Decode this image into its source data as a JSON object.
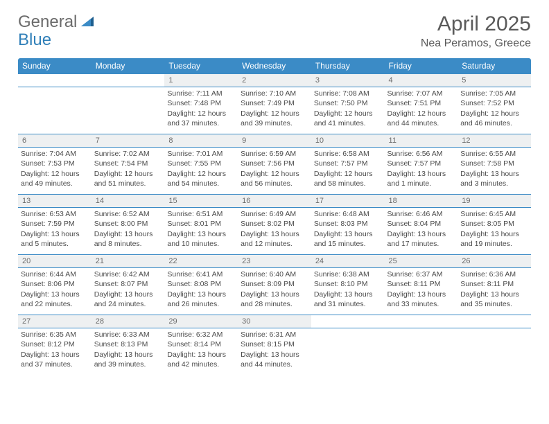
{
  "logo": {
    "word1": "General",
    "word2": "Blue"
  },
  "title": "April 2025",
  "location": "Nea Peramos, Greece",
  "colors": {
    "header_bg": "#3b8bc6",
    "daynum_bg": "#eef0f1",
    "rule": "#3b8bc6",
    "text": "#4a4a4a",
    "title_text": "#5a5a5a",
    "logo_gray": "#6b6b6b",
    "logo_blue": "#2f7fb8"
  },
  "day_headers": [
    "Sunday",
    "Monday",
    "Tuesday",
    "Wednesday",
    "Thursday",
    "Friday",
    "Saturday"
  ],
  "weeks": [
    [
      null,
      null,
      {
        "d": "1",
        "sr": "Sunrise: 7:11 AM",
        "ss": "Sunset: 7:48 PM",
        "dl1": "Daylight: 12 hours",
        "dl2": "and 37 minutes."
      },
      {
        "d": "2",
        "sr": "Sunrise: 7:10 AM",
        "ss": "Sunset: 7:49 PM",
        "dl1": "Daylight: 12 hours",
        "dl2": "and 39 minutes."
      },
      {
        "d": "3",
        "sr": "Sunrise: 7:08 AM",
        "ss": "Sunset: 7:50 PM",
        "dl1": "Daylight: 12 hours",
        "dl2": "and 41 minutes."
      },
      {
        "d": "4",
        "sr": "Sunrise: 7:07 AM",
        "ss": "Sunset: 7:51 PM",
        "dl1": "Daylight: 12 hours",
        "dl2": "and 44 minutes."
      },
      {
        "d": "5",
        "sr": "Sunrise: 7:05 AM",
        "ss": "Sunset: 7:52 PM",
        "dl1": "Daylight: 12 hours",
        "dl2": "and 46 minutes."
      }
    ],
    [
      {
        "d": "6",
        "sr": "Sunrise: 7:04 AM",
        "ss": "Sunset: 7:53 PM",
        "dl1": "Daylight: 12 hours",
        "dl2": "and 49 minutes."
      },
      {
        "d": "7",
        "sr": "Sunrise: 7:02 AM",
        "ss": "Sunset: 7:54 PM",
        "dl1": "Daylight: 12 hours",
        "dl2": "and 51 minutes."
      },
      {
        "d": "8",
        "sr": "Sunrise: 7:01 AM",
        "ss": "Sunset: 7:55 PM",
        "dl1": "Daylight: 12 hours",
        "dl2": "and 54 minutes."
      },
      {
        "d": "9",
        "sr": "Sunrise: 6:59 AM",
        "ss": "Sunset: 7:56 PM",
        "dl1": "Daylight: 12 hours",
        "dl2": "and 56 minutes."
      },
      {
        "d": "10",
        "sr": "Sunrise: 6:58 AM",
        "ss": "Sunset: 7:57 PM",
        "dl1": "Daylight: 12 hours",
        "dl2": "and 58 minutes."
      },
      {
        "d": "11",
        "sr": "Sunrise: 6:56 AM",
        "ss": "Sunset: 7:57 PM",
        "dl1": "Daylight: 13 hours",
        "dl2": "and 1 minute."
      },
      {
        "d": "12",
        "sr": "Sunrise: 6:55 AM",
        "ss": "Sunset: 7:58 PM",
        "dl1": "Daylight: 13 hours",
        "dl2": "and 3 minutes."
      }
    ],
    [
      {
        "d": "13",
        "sr": "Sunrise: 6:53 AM",
        "ss": "Sunset: 7:59 PM",
        "dl1": "Daylight: 13 hours",
        "dl2": "and 5 minutes."
      },
      {
        "d": "14",
        "sr": "Sunrise: 6:52 AM",
        "ss": "Sunset: 8:00 PM",
        "dl1": "Daylight: 13 hours",
        "dl2": "and 8 minutes."
      },
      {
        "d": "15",
        "sr": "Sunrise: 6:51 AM",
        "ss": "Sunset: 8:01 PM",
        "dl1": "Daylight: 13 hours",
        "dl2": "and 10 minutes."
      },
      {
        "d": "16",
        "sr": "Sunrise: 6:49 AM",
        "ss": "Sunset: 8:02 PM",
        "dl1": "Daylight: 13 hours",
        "dl2": "and 12 minutes."
      },
      {
        "d": "17",
        "sr": "Sunrise: 6:48 AM",
        "ss": "Sunset: 8:03 PM",
        "dl1": "Daylight: 13 hours",
        "dl2": "and 15 minutes."
      },
      {
        "d": "18",
        "sr": "Sunrise: 6:46 AM",
        "ss": "Sunset: 8:04 PM",
        "dl1": "Daylight: 13 hours",
        "dl2": "and 17 minutes."
      },
      {
        "d": "19",
        "sr": "Sunrise: 6:45 AM",
        "ss": "Sunset: 8:05 PM",
        "dl1": "Daylight: 13 hours",
        "dl2": "and 19 minutes."
      }
    ],
    [
      {
        "d": "20",
        "sr": "Sunrise: 6:44 AM",
        "ss": "Sunset: 8:06 PM",
        "dl1": "Daylight: 13 hours",
        "dl2": "and 22 minutes."
      },
      {
        "d": "21",
        "sr": "Sunrise: 6:42 AM",
        "ss": "Sunset: 8:07 PM",
        "dl1": "Daylight: 13 hours",
        "dl2": "and 24 minutes."
      },
      {
        "d": "22",
        "sr": "Sunrise: 6:41 AM",
        "ss": "Sunset: 8:08 PM",
        "dl1": "Daylight: 13 hours",
        "dl2": "and 26 minutes."
      },
      {
        "d": "23",
        "sr": "Sunrise: 6:40 AM",
        "ss": "Sunset: 8:09 PM",
        "dl1": "Daylight: 13 hours",
        "dl2": "and 28 minutes."
      },
      {
        "d": "24",
        "sr": "Sunrise: 6:38 AM",
        "ss": "Sunset: 8:10 PM",
        "dl1": "Daylight: 13 hours",
        "dl2": "and 31 minutes."
      },
      {
        "d": "25",
        "sr": "Sunrise: 6:37 AM",
        "ss": "Sunset: 8:11 PM",
        "dl1": "Daylight: 13 hours",
        "dl2": "and 33 minutes."
      },
      {
        "d": "26",
        "sr": "Sunrise: 6:36 AM",
        "ss": "Sunset: 8:11 PM",
        "dl1": "Daylight: 13 hours",
        "dl2": "and 35 minutes."
      }
    ],
    [
      {
        "d": "27",
        "sr": "Sunrise: 6:35 AM",
        "ss": "Sunset: 8:12 PM",
        "dl1": "Daylight: 13 hours",
        "dl2": "and 37 minutes."
      },
      {
        "d": "28",
        "sr": "Sunrise: 6:33 AM",
        "ss": "Sunset: 8:13 PM",
        "dl1": "Daylight: 13 hours",
        "dl2": "and 39 minutes."
      },
      {
        "d": "29",
        "sr": "Sunrise: 6:32 AM",
        "ss": "Sunset: 8:14 PM",
        "dl1": "Daylight: 13 hours",
        "dl2": "and 42 minutes."
      },
      {
        "d": "30",
        "sr": "Sunrise: 6:31 AM",
        "ss": "Sunset: 8:15 PM",
        "dl1": "Daylight: 13 hours",
        "dl2": "and 44 minutes."
      },
      null,
      null,
      null
    ]
  ]
}
